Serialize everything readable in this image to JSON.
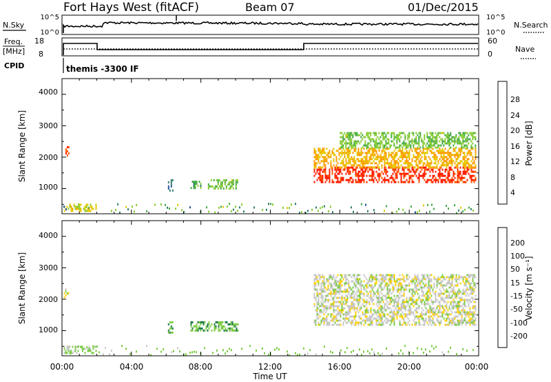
{
  "header": {
    "station": "Fort Hays West (fitACF)",
    "beam": "Beam 07",
    "date": "01/Dec/2015"
  },
  "top_panels": {
    "nsky_label": "N.Sky",
    "nsearch_label": "N.Search",
    "nsky_left_ticks": [
      "10^5",
      "10^0"
    ],
    "nsky_right_ticks": [
      "10^5",
      "10^0"
    ],
    "freq_label_line1": "Freq.",
    "freq_label_line2": "[MHz]",
    "freq_ticks": [
      "18",
      "8"
    ],
    "nave_label": "Nave",
    "nave_ticks": [
      "60",
      "0"
    ],
    "cpid_label": "CPID",
    "cpid_text": "themis -3300 IF"
  },
  "power_panel": {
    "ylabel": "Slant Range [km]",
    "yticks": [
      "4000",
      "3000",
      "2000",
      "1000"
    ],
    "colorbar_label": "Power [dB]",
    "colorbar_ticks": [
      "28",
      "24",
      "20",
      "16",
      "12",
      "8",
      "4"
    ],
    "colors": [
      "#0000ff",
      "#2050a0",
      "#2e7d6b",
      "#44aa44",
      "#88cc33",
      "#e6c800",
      "#ff9a00",
      "#ff5a00",
      "#ff1a00"
    ]
  },
  "velocity_panel": {
    "ylabel": "Slant Range [km]",
    "yticks": [
      "4000",
      "3000",
      "2000",
      "1000"
    ],
    "colorbar_label": "Velocity [m s⁻¹]",
    "colorbar_ticks": [
      "200",
      "100",
      "50",
      "15",
      "-15",
      "-50",
      "-100",
      "-200"
    ],
    "colors": [
      "#2a2ab8",
      "#2a6aa0",
      "#1f7a4a",
      "#7ccc44",
      "#c8c8c8",
      "#ffd200",
      "#ffa000",
      "#ff6000",
      "#ff1a00"
    ]
  },
  "x_axis": {
    "ticks": [
      "00:00",
      "04:00",
      "08:00",
      "12:00",
      "16:00",
      "20:00",
      "00:00"
    ],
    "label": "Time UT"
  },
  "chart_data": {
    "type": "heatmap",
    "x_range_hours": [
      0,
      24
    ],
    "y_range_km": [
      200,
      4500
    ],
    "power_scale_db": [
      0,
      30
    ],
    "velocity_scale_ms": [
      -250,
      250
    ],
    "power_regions": [
      {
        "t0": 0.2,
        "t1": 0.4,
        "r0": 2050,
        "r1": 2350,
        "value": 26
      },
      {
        "t0": 0.1,
        "t1": 2.0,
        "r0": 300,
        "r1": 520,
        "value": 18
      },
      {
        "t0": 6.1,
        "t1": 6.4,
        "r0": 950,
        "r1": 1300,
        "value": 8
      },
      {
        "t0": 7.4,
        "t1": 8.0,
        "r0": 1050,
        "r1": 1250,
        "value": 12
      },
      {
        "t0": 8.4,
        "t1": 10.1,
        "r0": 1000,
        "r1": 1300,
        "value": 14
      },
      {
        "t0": 14.5,
        "t1": 23.8,
        "r0": 1200,
        "r1": 1700,
        "value": 28
      },
      {
        "t0": 14.5,
        "t1": 23.8,
        "r0": 1700,
        "r1": 2300,
        "value": 20
      },
      {
        "t0": 16.0,
        "t1": 23.8,
        "r0": 2300,
        "r1": 2800,
        "value": 14
      }
    ],
    "velocity_regions": [
      {
        "t0": 0.1,
        "t1": 0.4,
        "r0": 2050,
        "r1": 2350,
        "value": 0
      },
      {
        "t0": 0.1,
        "t1": 2.0,
        "r0": 300,
        "r1": 520,
        "value": -40
      },
      {
        "t0": 6.1,
        "t1": 6.4,
        "r0": 950,
        "r1": 1300,
        "value": -80
      },
      {
        "t0": 7.4,
        "t1": 10.1,
        "r0": 1000,
        "r1": 1300,
        "value": -70
      },
      {
        "t0": 14.5,
        "t1": 23.8,
        "r0": 1200,
        "r1": 2800,
        "value": 0
      }
    ]
  }
}
